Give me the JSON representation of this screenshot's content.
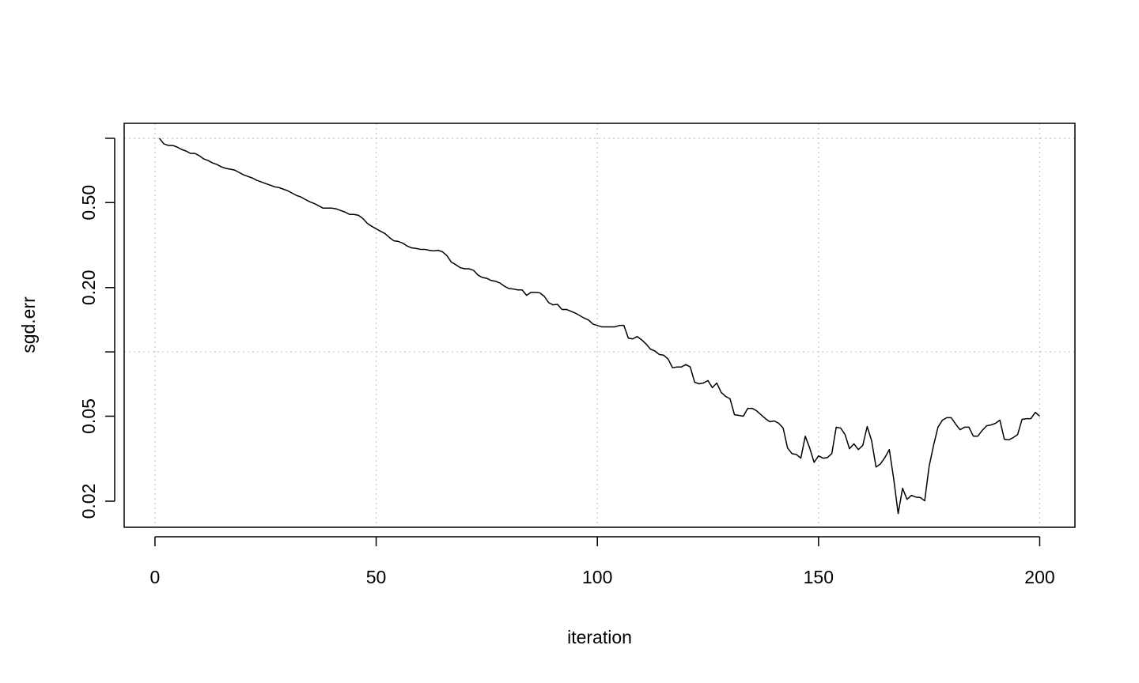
{
  "chart_data": {
    "type": "line",
    "x_label": "iteration",
    "y_label": "sgd.err",
    "log_y": true,
    "color": "#000000",
    "x": [
      1,
      2,
      3,
      4,
      5,
      6,
      7,
      8,
      9,
      10,
      11,
      12,
      13,
      14,
      15,
      16,
      17,
      18,
      19,
      20,
      21,
      22,
      23,
      24,
      25,
      26,
      27,
      28,
      29,
      30,
      31,
      32,
      33,
      34,
      35,
      36,
      37,
      38,
      39,
      40,
      41,
      42,
      43,
      44,
      45,
      46,
      47,
      48,
      49,
      50,
      51,
      52,
      53,
      54,
      55,
      56,
      57,
      58,
      59,
      60,
      61,
      62,
      63,
      64,
      65,
      66,
      67,
      68,
      69,
      70,
      71,
      72,
      73,
      74,
      75,
      76,
      77,
      78,
      79,
      80,
      81,
      82,
      83,
      84,
      85,
      86,
      87,
      88,
      89,
      90,
      91,
      92,
      93,
      94,
      95,
      96,
      97,
      98,
      99,
      100,
      101,
      102,
      103,
      104,
      105,
      106,
      107,
      108,
      109,
      110,
      111,
      112,
      113,
      114,
      115,
      116,
      117,
      118,
      119,
      120,
      121,
      122,
      123,
      124,
      125,
      126,
      127,
      128,
      129,
      130,
      131,
      132,
      133,
      134,
      135,
      136,
      137,
      138,
      139,
      140,
      141,
      142,
      143,
      144,
      145,
      146,
      147,
      148,
      149,
      150,
      151,
      152,
      153,
      154,
      155,
      156,
      157,
      158,
      159,
      160,
      161,
      162,
      163,
      164,
      165,
      166,
      167,
      168,
      169,
      170,
      171,
      172,
      173,
      174,
      175,
      176,
      177,
      178,
      179,
      180,
      181,
      182,
      183,
      184,
      185,
      186,
      187,
      188,
      189,
      190,
      191,
      192,
      193,
      194,
      195,
      196,
      197,
      198,
      199,
      200
    ],
    "values": [
      1.0,
      0.942,
      0.926,
      0.926,
      0.91,
      0.887,
      0.872,
      0.85,
      0.85,
      0.829,
      0.801,
      0.787,
      0.767,
      0.754,
      0.735,
      0.723,
      0.717,
      0.71,
      0.692,
      0.675,
      0.663,
      0.652,
      0.636,
      0.625,
      0.614,
      0.604,
      0.593,
      0.588,
      0.578,
      0.568,
      0.554,
      0.54,
      0.531,
      0.517,
      0.504,
      0.495,
      0.483,
      0.471,
      0.471,
      0.471,
      0.467,
      0.459,
      0.451,
      0.44,
      0.44,
      0.436,
      0.421,
      0.4,
      0.387,
      0.377,
      0.367,
      0.358,
      0.343,
      0.331,
      0.329,
      0.323,
      0.313,
      0.307,
      0.305,
      0.302,
      0.302,
      0.299,
      0.297,
      0.299,
      0.294,
      0.282,
      0.263,
      0.256,
      0.248,
      0.245,
      0.245,
      0.241,
      0.229,
      0.223,
      0.221,
      0.216,
      0.214,
      0.21,
      0.203,
      0.198,
      0.197,
      0.195,
      0.195,
      0.184,
      0.19,
      0.19,
      0.189,
      0.182,
      0.17,
      0.166,
      0.167,
      0.158,
      0.158,
      0.155,
      0.152,
      0.148,
      0.144,
      0.141,
      0.135,
      0.133,
      0.131,
      0.131,
      0.131,
      0.131,
      0.133,
      0.133,
      0.116,
      0.115,
      0.118,
      0.114,
      0.109,
      0.103,
      0.101,
      0.0973,
      0.0965,
      0.0925,
      0.0843,
      0.085,
      0.085,
      0.0872,
      0.085,
      0.0721,
      0.0709,
      0.0715,
      0.0734,
      0.068,
      0.0715,
      0.0646,
      0.0619,
      0.0603,
      0.0508,
      0.0504,
      0.05,
      0.0544,
      0.0544,
      0.053,
      0.0508,
      0.0487,
      0.0471,
      0.0475,
      0.0463,
      0.044,
      0.0355,
      0.0334,
      0.0331,
      0.0318,
      0.0403,
      0.0355,
      0.0304,
      0.0326,
      0.0318,
      0.032,
      0.0334,
      0.0444,
      0.044,
      0.041,
      0.0352,
      0.0371,
      0.0349,
      0.0365,
      0.0447,
      0.0384,
      0.0289,
      0.0299,
      0.032,
      0.0349,
      0.0254,
      0.0175,
      0.023,
      0.0204,
      0.0213,
      0.0209,
      0.0208,
      0.0201,
      0.0291,
      0.0365,
      0.0444,
      0.0479,
      0.0492,
      0.0492,
      0.0459,
      0.0432,
      0.0444,
      0.0444,
      0.0403,
      0.0403,
      0.0429,
      0.0451,
      0.0455,
      0.0463,
      0.0479,
      0.039,
      0.0387,
      0.0397,
      0.041,
      0.0483,
      0.0487,
      0.0487,
      0.0521,
      0.05
    ],
    "xlim": [
      -6.96,
      207.96
    ],
    "ylim": [
      0.0151,
      1.175
    ],
    "xticks": [
      0,
      50,
      100,
      150,
      200
    ],
    "yticks": [
      {
        "value": 1,
        "label": null
      },
      {
        "value": 0.5,
        "label": "0.50"
      },
      {
        "value": 0.2,
        "label": "0.20"
      },
      {
        "value": 0.1,
        "label": null
      },
      {
        "value": 0.05,
        "label": "0.05"
      },
      {
        "value": 0.02,
        "label": "0.02"
      }
    ],
    "x_grid": [
      0,
      50,
      100,
      150,
      200
    ],
    "y_grid": [
      1,
      0.1
    ]
  }
}
